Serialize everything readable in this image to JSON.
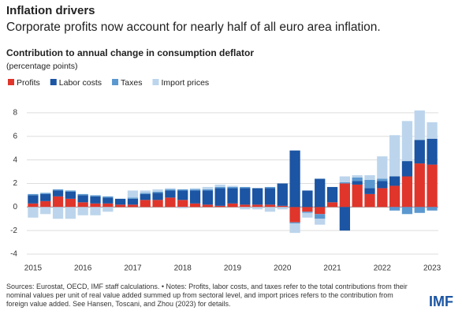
{
  "chart_data": {
    "type": "bar",
    "stacked": true,
    "title": "Inflation drivers",
    "subtitle": "Corporate profits now account for nearly half of all euro area inflation.",
    "chart_title": "Contribution to annual change in consumption deflator",
    "y_label": "(percentage points)",
    "categories": [
      "2015",
      null,
      null,
      null,
      "2016",
      null,
      null,
      null,
      "2017",
      null,
      null,
      null,
      "2018",
      null,
      null,
      null,
      "2019",
      null,
      null,
      null,
      "2020",
      null,
      null,
      null,
      "2021",
      null,
      null,
      null,
      "2022",
      null,
      null,
      null,
      "2023"
    ],
    "series": [
      {
        "name": "Profits",
        "color": "#e0352b",
        "values": [
          0.3,
          0.5,
          0.9,
          0.7,
          0.4,
          0.3,
          0.3,
          0.2,
          0.2,
          0.6,
          0.6,
          0.8,
          0.6,
          0.3,
          0.2,
          0.1,
          0.3,
          0.2,
          0.2,
          0.2,
          0.1,
          -1.3,
          -0.4,
          -0.6,
          0.4,
          2.0,
          1.9,
          1.1,
          1.6,
          1.8,
          2.6,
          3.7,
          3.6
        ]
      },
      {
        "name": "Labor costs",
        "color": "#1b55a3",
        "values": [
          0.7,
          0.6,
          0.5,
          0.6,
          0.6,
          0.6,
          0.5,
          0.5,
          0.5,
          0.5,
          0.6,
          0.6,
          0.8,
          1.1,
          1.2,
          1.5,
          1.3,
          1.4,
          1.4,
          1.4,
          1.9,
          4.8,
          1.4,
          2.4,
          1.3,
          -2.0,
          0.3,
          0.5,
          0.6,
          0.8,
          1.3,
          2.0,
          2.2
        ]
      },
      {
        "name": "Taxes",
        "color": "#5b98cf",
        "values": [
          0.1,
          0.1,
          0.1,
          0.1,
          0.1,
          0.1,
          0.1,
          0.0,
          0.1,
          0.1,
          0.1,
          0.1,
          0.1,
          0.1,
          0.1,
          0.1,
          0.1,
          0.1,
          0.0,
          0.1,
          0.0,
          -0.1,
          -0.1,
          -0.4,
          0.0,
          0.1,
          0.3,
          0.7,
          0.2,
          -0.3,
          -0.6,
          -0.5,
          -0.3
        ]
      },
      {
        "name": "Import prices",
        "color": "#bcd5ec",
        "values": [
          -0.9,
          -0.6,
          -1.0,
          -1.0,
          -0.7,
          -0.7,
          -0.4,
          0.0,
          0.6,
          0.2,
          0.2,
          0.1,
          -0.1,
          0.1,
          0.2,
          0.2,
          0.1,
          -0.2,
          -0.2,
          -0.4,
          -0.2,
          -0.8,
          -0.4,
          -0.5,
          0.0,
          0.5,
          0.2,
          0.4,
          1.9,
          3.5,
          3.4,
          2.5,
          1.4
        ]
      }
    ],
    "ylim": [
      -4,
      9
    ],
    "yticks": [
      -4,
      -2,
      0,
      2,
      4,
      6,
      8
    ],
    "grid": true,
    "source": "Sources: Eurostat, OECD, IMF staff calculations. • Notes: Profits, labor costs, and taxes refer to the total contributions from their nominal values per unit of real value added summed up from sectoral level, and import prices refers to the contribution from foreign value added. See Hansen, Toscani, and Zhou (2023) for details.",
    "logo": "IMF"
  }
}
